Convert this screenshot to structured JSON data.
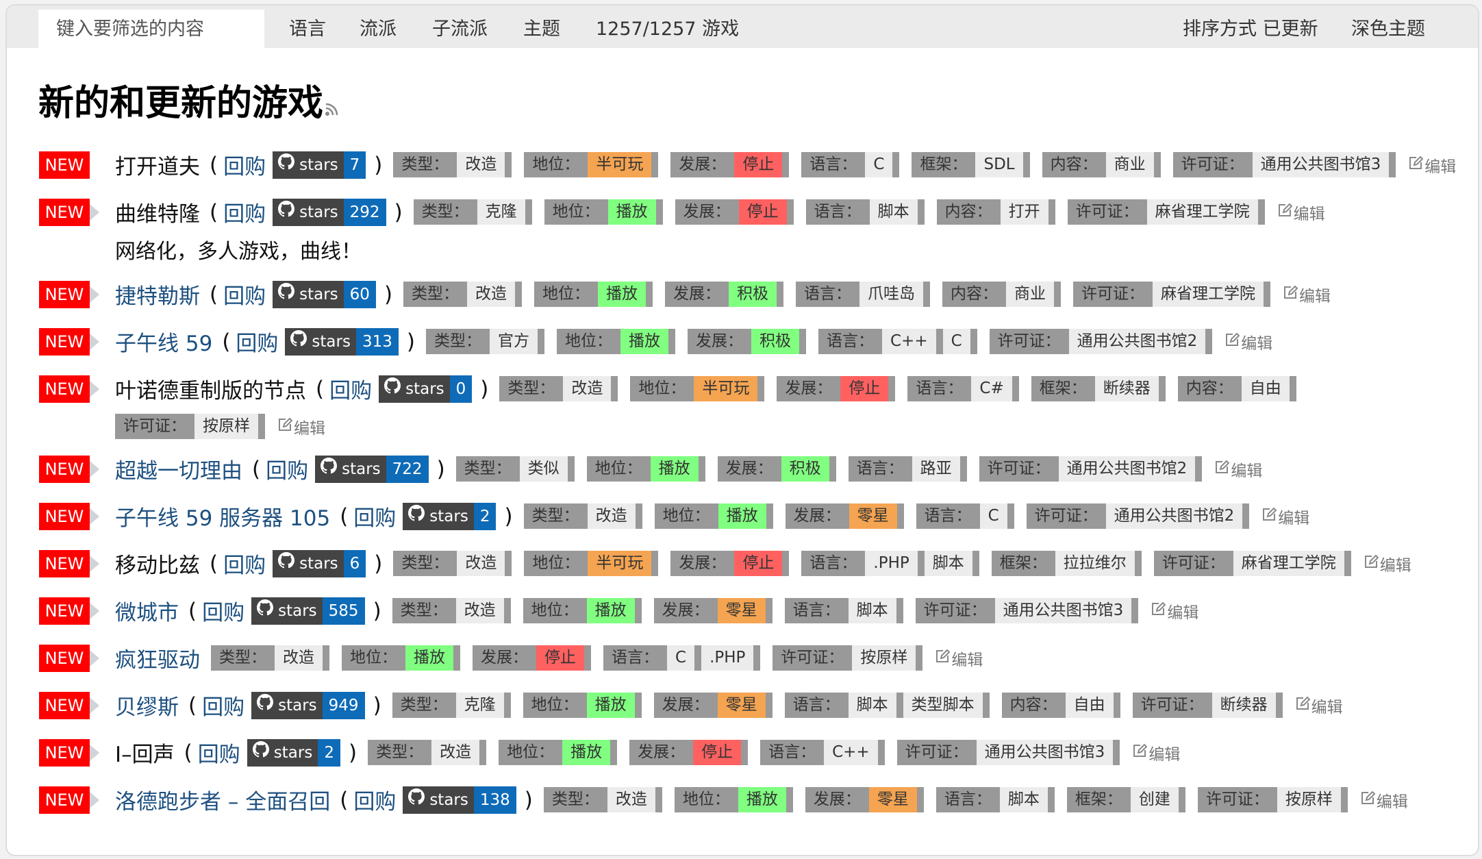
{
  "topbar": {
    "filter_placeholder": "键入要筛选的内容",
    "nav": [
      "语言",
      "流派",
      "子流派",
      "主题",
      "1257/1257 游戏"
    ],
    "sort": "排序方式 已更新",
    "theme": "深色主题"
  },
  "heading": "新的和更新的游戏",
  "labels": {
    "new": "NEW",
    "repo": "回购",
    "stars": "stars",
    "edit": "编辑",
    "open_paren": "(",
    "close_paren": ")"
  },
  "colors": {
    "new": "#ff0000",
    "link": "#1d5080",
    "stars_count": "#0e6bb8",
    "red": "#ff6161",
    "orange": "#f5a452",
    "green": "#80ff80",
    "neutral": "#ececec",
    "label": "#999999"
  },
  "games": [
    {
      "name": "打开道夫",
      "link": false,
      "arrow": false,
      "stars": "7",
      "tags": [
        [
          "类型：",
          [
            "改造"
          ]
        ],
        [
          "地位：",
          [
            [
              "半可玩",
              "orange"
            ]
          ]
        ],
        [
          "发展：",
          [
            [
              "停止",
              "red"
            ]
          ]
        ],
        [
          "语言：",
          [
            "C"
          ]
        ],
        [
          "框架：",
          [
            "SDL"
          ]
        ],
        [
          "内容：",
          [
            "商业"
          ]
        ],
        [
          "许可证：",
          [
            "通用公共图书馆3"
          ]
        ]
      ]
    },
    {
      "name": "曲维特隆",
      "link": false,
      "arrow": true,
      "stars": "292",
      "tags": [
        [
          "类型：",
          [
            "克隆"
          ]
        ],
        [
          "地位：",
          [
            [
              "播放",
              "green"
            ]
          ]
        ],
        [
          "发展：",
          [
            [
              "停止",
              "red"
            ]
          ]
        ],
        [
          "语言：",
          [
            "脚本"
          ]
        ],
        [
          "内容：",
          [
            "打开"
          ]
        ],
        [
          "许可证：",
          [
            "麻省理工学院"
          ]
        ]
      ],
      "desc": "网络化，多人游戏，曲线！"
    },
    {
      "name": "捷特勒斯",
      "link": true,
      "arrow": true,
      "stars": "60",
      "tags": [
        [
          "类型：",
          [
            "改造"
          ]
        ],
        [
          "地位：",
          [
            [
              "播放",
              "green"
            ]
          ]
        ],
        [
          "发展：",
          [
            [
              "积极",
              "green"
            ]
          ]
        ],
        [
          "语言：",
          [
            "爪哇岛"
          ]
        ],
        [
          "内容：",
          [
            "商业"
          ]
        ],
        [
          "许可证：",
          [
            "麻省理工学院"
          ]
        ]
      ]
    },
    {
      "name": "子午线 59",
      "link": true,
      "arrow": true,
      "stars": "313",
      "tags": [
        [
          "类型：",
          [
            "官方"
          ]
        ],
        [
          "地位：",
          [
            [
              "播放",
              "green"
            ]
          ]
        ],
        [
          "发展：",
          [
            [
              "积极",
              "green"
            ]
          ]
        ],
        [
          "语言：",
          [
            "C++",
            "C"
          ]
        ],
        [
          "许可证：",
          [
            "通用公共图书馆2"
          ]
        ]
      ]
    },
    {
      "name": "叶诺德重制版的节点",
      "link": false,
      "arrow": true,
      "stars": "0",
      "tags": [
        [
          "类型：",
          [
            "改造"
          ]
        ],
        [
          "地位：",
          [
            [
              "半可玩",
              "orange"
            ]
          ]
        ],
        [
          "发展：",
          [
            [
              "停止",
              "red"
            ]
          ]
        ],
        [
          "语言：",
          [
            "C#"
          ]
        ],
        [
          "框架：",
          [
            "断续器"
          ]
        ],
        [
          "内容：",
          [
            "自由"
          ]
        ],
        [
          "许可证：",
          [
            "按原样"
          ]
        ]
      ]
    },
    {
      "name": "超越一切理由",
      "link": true,
      "arrow": true,
      "stars": "722",
      "tags": [
        [
          "类型：",
          [
            "类似"
          ]
        ],
        [
          "地位：",
          [
            [
              "播放",
              "green"
            ]
          ]
        ],
        [
          "发展：",
          [
            [
              "积极",
              "green"
            ]
          ]
        ],
        [
          "语言：",
          [
            "路亚"
          ]
        ],
        [
          "许可证：",
          [
            "通用公共图书馆2"
          ]
        ]
      ]
    },
    {
      "name": "子午线 59 服务器 105",
      "link": true,
      "arrow": true,
      "stars": "2",
      "tags": [
        [
          "类型：",
          [
            "改造"
          ]
        ],
        [
          "地位：",
          [
            [
              "播放",
              "green"
            ]
          ]
        ],
        [
          "发展：",
          [
            [
              "零星",
              "orange"
            ]
          ]
        ],
        [
          "语言：",
          [
            "C"
          ]
        ],
        [
          "许可证：",
          [
            "通用公共图书馆2"
          ]
        ]
      ]
    },
    {
      "name": "移动比兹",
      "link": false,
      "arrow": true,
      "stars": "6",
      "tags": [
        [
          "类型：",
          [
            "改造"
          ]
        ],
        [
          "地位：",
          [
            [
              "半可玩",
              "orange"
            ]
          ]
        ],
        [
          "发展：",
          [
            [
              "停止",
              "red"
            ]
          ]
        ],
        [
          "语言：",
          [
            ".PHP",
            "脚本"
          ]
        ],
        [
          "框架：",
          [
            "拉拉维尔"
          ]
        ],
        [
          "许可证：",
          [
            "麻省理工学院"
          ]
        ]
      ]
    },
    {
      "name": "微城市",
      "link": true,
      "arrow": true,
      "stars": "585",
      "tags": [
        [
          "类型：",
          [
            "改造"
          ]
        ],
        [
          "地位：",
          [
            [
              "播放",
              "green"
            ]
          ]
        ],
        [
          "发展：",
          [
            [
              "零星",
              "orange"
            ]
          ]
        ],
        [
          "语言：",
          [
            "脚本"
          ]
        ],
        [
          "许可证：",
          [
            "通用公共图书馆3"
          ]
        ]
      ]
    },
    {
      "name": "疯狂驱动",
      "link": true,
      "arrow": true,
      "stars": null,
      "tags": [
        [
          "类型：",
          [
            "改造"
          ]
        ],
        [
          "地位：",
          [
            [
              "播放",
              "green"
            ]
          ]
        ],
        [
          "发展：",
          [
            [
              "停止",
              "red"
            ]
          ]
        ],
        [
          "语言：",
          [
            "C",
            ".PHP"
          ]
        ],
        [
          "许可证：",
          [
            "按原样"
          ]
        ]
      ]
    },
    {
      "name": "贝缪斯",
      "link": true,
      "arrow": true,
      "stars": "949",
      "tags": [
        [
          "类型：",
          [
            "克隆"
          ]
        ],
        [
          "地位：",
          [
            [
              "播放",
              "green"
            ]
          ]
        ],
        [
          "发展：",
          [
            [
              "零星",
              "orange"
            ]
          ]
        ],
        [
          "语言：",
          [
            "脚本",
            "类型脚本"
          ]
        ],
        [
          "内容：",
          [
            "自由"
          ]
        ],
        [
          "许可证：",
          [
            "断续器"
          ]
        ]
      ]
    },
    {
      "name": "I–回声",
      "link": false,
      "arrow": true,
      "stars": "2",
      "tags": [
        [
          "类型：",
          [
            "改造"
          ]
        ],
        [
          "地位：",
          [
            [
              "播放",
              "green"
            ]
          ]
        ],
        [
          "发展：",
          [
            [
              "停止",
              "red"
            ]
          ]
        ],
        [
          "语言：",
          [
            "C++"
          ]
        ],
        [
          "许可证：",
          [
            "通用公共图书馆3"
          ]
        ]
      ]
    },
    {
      "name": "洛德跑步者 – 全面召回",
      "link": true,
      "arrow": true,
      "stars": "138",
      "tags": [
        [
          "类型：",
          [
            "改造"
          ]
        ],
        [
          "地位：",
          [
            [
              "播放",
              "green"
            ]
          ]
        ],
        [
          "发展：",
          [
            [
              "零星",
              "orange"
            ]
          ]
        ],
        [
          "语言：",
          [
            "脚本"
          ]
        ],
        [
          "框架：",
          [
            "创建"
          ]
        ],
        [
          "许可证：",
          [
            "按原样"
          ]
        ]
      ]
    }
  ]
}
